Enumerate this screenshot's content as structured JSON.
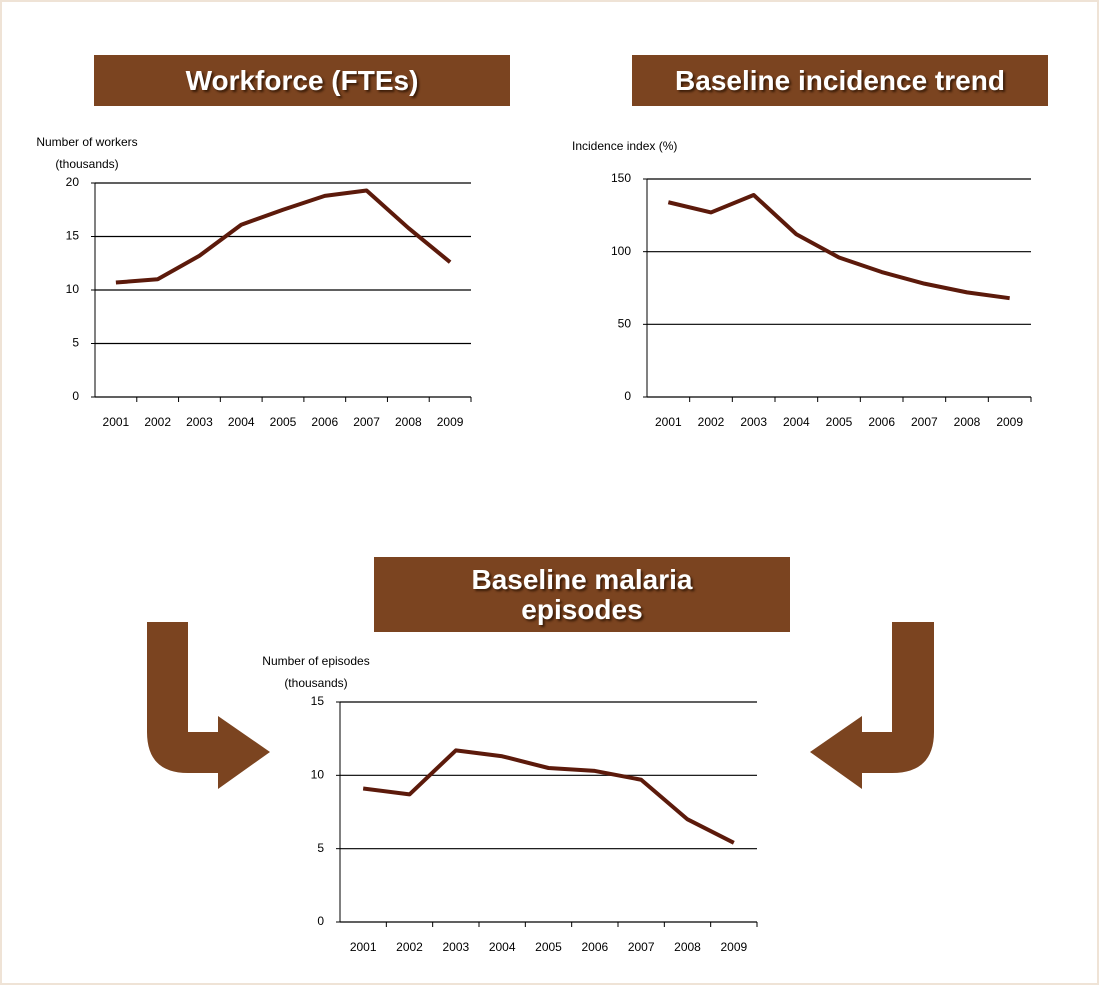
{
  "chart_data": [
    {
      "type": "line",
      "title": "Workforce (FTEs)",
      "ylabel": [
        "Number of workers",
        "(thousands)"
      ],
      "categories": [
        "2001",
        "2002",
        "2003",
        "2004",
        "2005",
        "2006",
        "2007",
        "2008",
        "2009"
      ],
      "values": [
        10.7,
        11.0,
        13.2,
        16.1,
        17.5,
        18.8,
        19.3,
        15.8,
        12.6
      ],
      "color": "#5c1a0b",
      "ylim": [
        0,
        20
      ],
      "yticks": [
        0,
        5,
        10,
        15,
        20
      ],
      "grid": true
    },
    {
      "type": "line",
      "title": "Baseline incidence trend",
      "ylabel": [
        "Incidence index (%)"
      ],
      "categories": [
        "2001",
        "2002",
        "2003",
        "2004",
        "2005",
        "2006",
        "2007",
        "2008",
        "2009"
      ],
      "values": [
        134,
        127,
        139,
        112,
        96,
        86,
        78,
        72,
        68
      ],
      "color": "#5c1a0b",
      "ylim": [
        0,
        150
      ],
      "yticks": [
        0,
        50,
        100,
        150
      ],
      "grid": true
    },
    {
      "type": "line",
      "title": "Baseline malaria episodes",
      "ylabel": [
        "Number of episodes",
        "(thousands)"
      ],
      "categories": [
        "2001",
        "2002",
        "2003",
        "2004",
        "2005",
        "2006",
        "2007",
        "2008",
        "2009"
      ],
      "values": [
        9.1,
        8.7,
        11.7,
        11.3,
        10.5,
        10.3,
        9.7,
        7.0,
        5.4
      ],
      "color": "#5c1a0b",
      "ylim": [
        0,
        15
      ],
      "yticks": [
        0,
        5,
        10,
        15
      ],
      "grid": true
    }
  ]
}
